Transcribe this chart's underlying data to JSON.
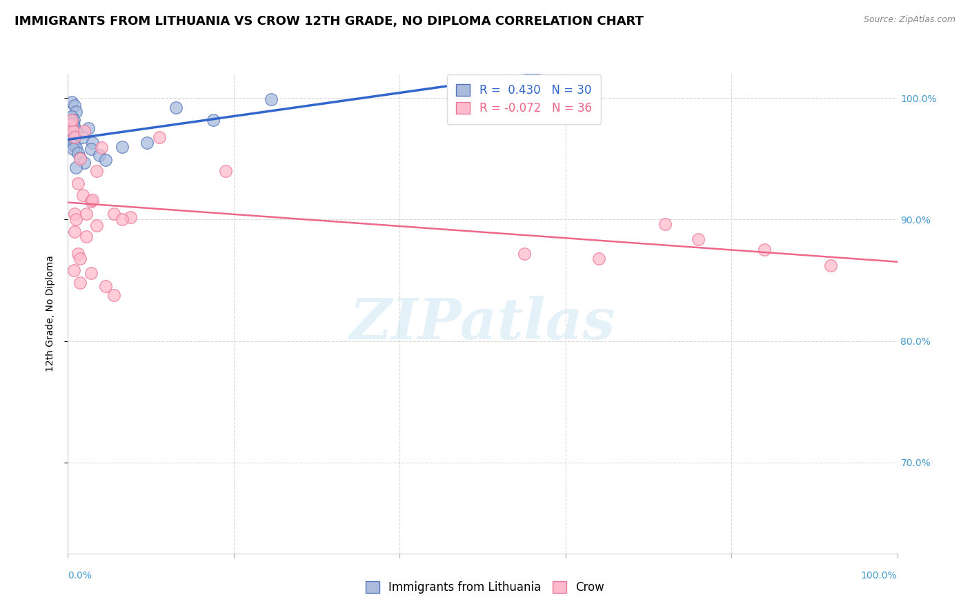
{
  "title": "IMMIGRANTS FROM LITHUANIA VS CROW 12TH GRADE, NO DIPLOMA CORRELATION CHART",
  "source_text": "Source: ZipAtlas.com",
  "ylabel": "12th Grade, No Diploma",
  "blue_label": "Immigrants from Lithuania",
  "pink_label": "Crow",
  "blue_R": 0.43,
  "blue_N": 30,
  "pink_R": -0.072,
  "pink_N": 36,
  "xmin": 0.0,
  "xmax": 1.0,
  "ymin": 0.625,
  "ymax": 1.02,
  "yticks": [
    0.7,
    0.8,
    0.9,
    1.0
  ],
  "ytick_labels": [
    "70.0%",
    "80.0%",
    "90.0%",
    "100.0%"
  ],
  "xtick_positions": [
    0.0,
    0.2,
    0.4,
    0.6,
    0.8,
    1.0
  ],
  "grid_color": "#d8d8d8",
  "blue_color": "#aabbdd",
  "pink_color": "#ffbbcc",
  "blue_edge": "#5577bb",
  "pink_edge": "#ee7799",
  "blue_line_color": "#3366cc",
  "pink_line_color": "#ee6688",
  "tick_color": "#4499cc",
  "watermark_text": "ZIPatlas",
  "title_fontsize": 13,
  "axis_label_fontsize": 10,
  "tick_fontsize": 10,
  "legend_fontsize": 12,
  "blue_scatter_x": [
    0.005,
    0.008,
    0.01,
    0.005,
    0.007,
    0.006,
    0.008,
    0.01,
    0.005,
    0.008,
    0.004,
    0.006,
    0.007,
    0.01,
    0.006,
    0.012,
    0.015,
    0.02,
    0.01,
    0.025,
    0.018,
    0.03,
    0.028,
    0.038,
    0.045,
    0.065,
    0.095,
    0.13,
    0.175,
    0.245
  ],
  "blue_scatter_y": [
    0.997,
    0.994,
    0.989,
    0.985,
    0.982,
    0.979,
    0.976,
    0.973,
    0.97,
    0.968,
    0.965,
    0.963,
    0.961,
    0.959,
    0.958,
    0.955,
    0.951,
    0.947,
    0.943,
    0.975,
    0.968,
    0.963,
    0.958,
    0.953,
    0.949,
    0.96,
    0.963,
    0.992,
    0.982,
    0.999
  ],
  "pink_scatter_x": [
    0.004,
    0.006,
    0.008,
    0.005,
    0.02,
    0.04,
    0.035,
    0.015,
    0.012,
    0.018,
    0.028,
    0.022,
    0.055,
    0.075,
    0.065,
    0.008,
    0.022,
    0.012,
    0.015,
    0.007,
    0.028,
    0.015,
    0.045,
    0.055,
    0.008,
    0.01,
    0.03,
    0.11,
    0.19,
    0.035,
    0.55,
    0.64,
    0.72,
    0.76,
    0.84,
    0.92
  ],
  "pink_scatter_y": [
    0.978,
    0.973,
    0.968,
    0.982,
    0.973,
    0.959,
    0.94,
    0.95,
    0.93,
    0.92,
    0.915,
    0.905,
    0.905,
    0.902,
    0.9,
    0.89,
    0.886,
    0.872,
    0.868,
    0.858,
    0.856,
    0.848,
    0.845,
    0.838,
    0.905,
    0.9,
    0.916,
    0.968,
    0.94,
    0.895,
    0.872,
    0.868,
    0.896,
    0.884,
    0.875,
    0.862
  ],
  "marker_size": 160
}
